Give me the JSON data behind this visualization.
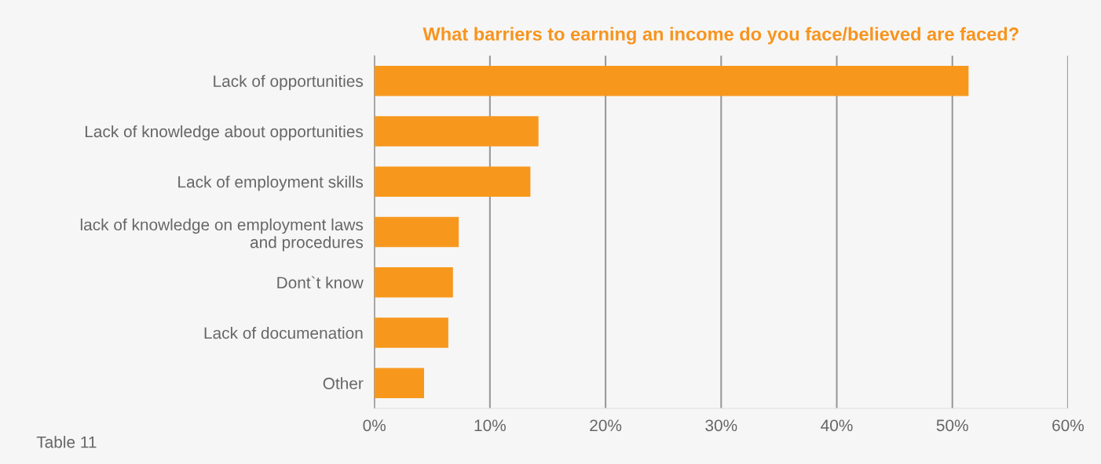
{
  "chart_data": {
    "type": "bar",
    "orientation": "horizontal",
    "title": "What barriers to earning an income do you face/believed are faced?",
    "categories": [
      "Lack of opportunities",
      "Lack of knowledge about opportunities",
      "Lack of employment skills",
      "lack of knowledge on employment laws\nand procedures",
      "Dont`t know",
      "Lack of documenation",
      "Other"
    ],
    "values": [
      51.4,
      14.2,
      13.5,
      7.3,
      6.8,
      6.4,
      4.3
    ],
    "color": "#f7981d",
    "xlim": [
      0,
      60
    ],
    "xticks": [
      {
        "value": 0,
        "label": "0%"
      },
      {
        "value": 10,
        "label": "10%"
      },
      {
        "value": 20,
        "label": "20%"
      },
      {
        "value": 30,
        "label": "30%"
      },
      {
        "value": 40,
        "label": "40%"
      },
      {
        "value": 50,
        "label": "50%"
      },
      {
        "value": 60,
        "label": "60%"
      }
    ],
    "grid": "x",
    "annotations": [
      "Table 11"
    ]
  }
}
